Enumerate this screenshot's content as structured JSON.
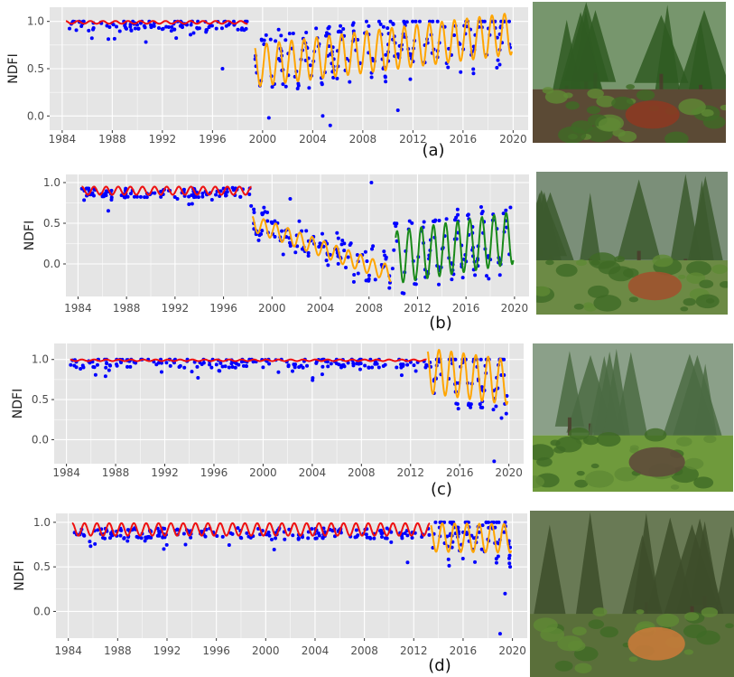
{
  "colors": {
    "panel_bg": "#e5e5e5",
    "grid": "#ffffff",
    "points": "#0000ff",
    "stable_line": "#ee1111",
    "segment_orange": "#ffa500",
    "segment_green": "#1a8a1a",
    "axis_text": "#4d4d4d"
  },
  "chart_data": [
    {
      "type": "scatter",
      "panel_label": "(a)",
      "ylabel": "NDFI",
      "xlim": [
        1983.0,
        2021.2
      ],
      "ylim": [
        -0.15,
        1.15
      ],
      "xticks": [
        1984,
        1988,
        1992,
        1996,
        2000,
        2004,
        2008,
        2012,
        2016,
        2020
      ],
      "yticks": [
        0.0,
        0.5,
        1.0
      ],
      "ytick_labels": [
        "0.0",
        "0.5",
        "1.0"
      ],
      "segments": [
        {
          "color_key": "stable_line",
          "start": 1984.3,
          "end": 1998.8,
          "kind": "flat",
          "level": 0.99,
          "amp": 0.015
        },
        {
          "color_key": "segment_orange",
          "start": 1999.4,
          "end": 2019.9,
          "kind": "seasonal",
          "mean_start": 0.53,
          "mean_end": 0.87,
          "amp": 0.22
        }
      ],
      "points": {
        "seed": 11,
        "n_stable": 110,
        "stable_range": [
          1984.3,
          1998.8
        ],
        "stable_level": 0.99,
        "n_disturbed": 230,
        "disturbed_range": [
          1999.4,
          2019.9
        ],
        "outliers": [
          [
            2000.5,
            -0.02
          ],
          [
            2005.4,
            -0.1
          ],
          [
            2004.8,
            0.0
          ],
          [
            2010.8,
            0.06
          ],
          [
            1996.8,
            0.5
          ]
        ]
      }
    },
    {
      "type": "scatter",
      "panel_label": "(b)",
      "ylabel": "NDFI",
      "xlim": [
        1983.0,
        2021.2
      ],
      "ylim": [
        -0.4,
        1.1
      ],
      "xticks": [
        1984,
        1988,
        1992,
        1996,
        2000,
        2004,
        2008,
        2012,
        2016,
        2020
      ],
      "yticks": [
        0.0,
        0.5,
        1.0
      ],
      "ytick_labels": [
        "0.0",
        "0.5",
        "1.0"
      ],
      "segments": [
        {
          "color_key": "stable_line",
          "start": 1984.3,
          "end": 1998.3,
          "kind": "seasonal",
          "mean_start": 0.9,
          "mean_end": 0.9,
          "amp": 0.05
        },
        {
          "color_key": "segment_orange",
          "start": 1998.4,
          "end": 2009.8,
          "kind": "seasonal",
          "mean_start": 0.5,
          "mean_end": -0.12,
          "amp": 0.1
        },
        {
          "color_key": "segment_green",
          "start": 2010.2,
          "end": 2019.9,
          "kind": "seasonal",
          "mean_start": 0.08,
          "mean_end": 0.32,
          "amp": 0.32
        }
      ],
      "points": {
        "seed": 23,
        "n_stable": 110,
        "stable_range": [
          1984.3,
          1998.3
        ],
        "stable_level": 0.9,
        "n_disturbed": 220,
        "disturbed_range": [
          1998.4,
          2019.9
        ],
        "outliers": [
          [
            2008.2,
            1.0
          ],
          [
            2003.0,
            0.1
          ],
          [
            2001.5,
            0.8
          ]
        ]
      }
    },
    {
      "type": "scatter",
      "panel_label": "(c)",
      "ylabel": "NDFI",
      "xlim": [
        1983.0,
        2021.2
      ],
      "ylim": [
        -0.3,
        1.2
      ],
      "xticks": [
        1984,
        1988,
        1992,
        1996,
        2000,
        2004,
        2008,
        2012,
        2016,
        2020
      ],
      "yticks": [
        0.0,
        0.5,
        1.0
      ],
      "ytick_labels": [
        "0.0",
        "0.5",
        "1.0"
      ],
      "segments": [
        {
          "color_key": "stable_line",
          "start": 1984.3,
          "end": 2013.3,
          "kind": "flat",
          "level": 0.99,
          "amp": 0.01
        },
        {
          "color_key": "segment_orange",
          "start": 2013.4,
          "end": 2019.9,
          "kind": "seasonal",
          "mean_start": 0.86,
          "mean_end": 0.72,
          "amp": 0.28
        }
      ],
      "points": {
        "seed": 37,
        "n_stable": 200,
        "stable_range": [
          1984.3,
          2013.3
        ],
        "stable_level": 0.98,
        "n_disturbed": 90,
        "disturbed_range": [
          2013.4,
          2019.9
        ],
        "outliers": [
          [
            2018.8,
            -0.27
          ],
          [
            2019.4,
            0.27
          ]
        ]
      }
    },
    {
      "type": "scatter",
      "panel_label": "(d)",
      "ylabel": "NDFI",
      "xlim": [
        1983.0,
        2021.2
      ],
      "ylim": [
        -0.3,
        1.1
      ],
      "xticks": [
        1984,
        1988,
        1992,
        1996,
        2000,
        2004,
        2008,
        2012,
        2016,
        2020
      ],
      "yticks": [
        0.0,
        0.5,
        1.0
      ],
      "ytick_labels": [
        "0.0",
        "0.5",
        "1.0"
      ],
      "segments": [
        {
          "color_key": "stable_line",
          "start": 1984.3,
          "end": 2013.3,
          "kind": "seasonal",
          "mean_start": 0.92,
          "mean_end": 0.92,
          "amp": 0.07
        },
        {
          "color_key": "segment_orange",
          "start": 2013.4,
          "end": 2019.9,
          "kind": "seasonal",
          "mean_start": 0.83,
          "mean_end": 0.82,
          "amp": 0.16
        }
      ],
      "points": {
        "seed": 53,
        "n_stable": 200,
        "stable_range": [
          1984.3,
          2013.3
        ],
        "stable_level": 0.9,
        "n_disturbed": 90,
        "disturbed_range": [
          2013.4,
          2019.9
        ],
        "outliers": [
          [
            2019.0,
            -0.25
          ],
          [
            2019.4,
            0.2
          ],
          [
            2011.5,
            0.55
          ],
          [
            1993.5,
            0.75
          ]
        ]
      }
    }
  ],
  "photos": [
    {
      "panel": "(a)",
      "scene": "spruce-forest-with-root-plate",
      "sky": "#cfe0c8",
      "canopy": "#2f5a22",
      "ground": "#5b4a35",
      "accent": "#8b3a22"
    },
    {
      "panel": "(b)",
      "scene": "regrowing-clearing",
      "sky": "#c7d0d4",
      "canopy": "#3c5a2e",
      "ground": "#6c8a45",
      "accent": "#a0522d"
    },
    {
      "panel": "(c)",
      "scene": "foggy-forest-hunting-stand",
      "sky": "#d9e1dd",
      "canopy": "#4b6b43",
      "ground": "#6f9a3c",
      "accent": "#5e4b3a"
    },
    {
      "panel": "(d)",
      "scene": "cut-stump-forest",
      "sky": "#9fb08a",
      "canopy": "#3d4e2a",
      "ground": "#5a6f3a",
      "accent": "#c77a3a"
    }
  ]
}
